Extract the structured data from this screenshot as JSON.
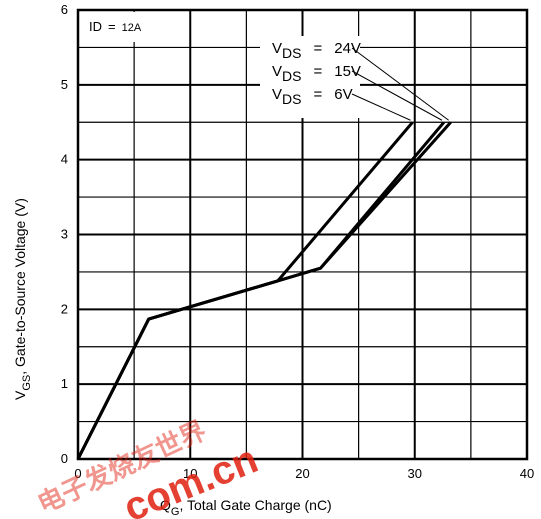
{
  "chart_data": {
    "type": "line",
    "xlabel": {
      "main": "Q",
      "sub": "G",
      "rest": ", Total Gate Charge (nC)"
    },
    "ylabel": {
      "main": "V",
      "sub": "GS",
      "rest": ", Gate-to-Source Voltage (V)"
    },
    "xlim": [
      0,
      40
    ],
    "ylim": [
      0,
      6
    ],
    "x_ticks": [
      "0",
      "10",
      "20",
      "30",
      "40"
    ],
    "y_ticks": [
      "0",
      "1",
      "2",
      "3",
      "4",
      "5",
      "6"
    ],
    "grid": true,
    "condition": {
      "label": "ID",
      "eq": "=",
      "value": "12A"
    },
    "series": [
      {
        "name": "24V",
        "label_main": "V",
        "label_sub": "DS",
        "eq": "=",
        "points": [
          [
            0,
            0
          ],
          [
            6.3,
            1.87
          ],
          [
            21.6,
            2.55
          ],
          [
            33.2,
            4.5
          ]
        ]
      },
      {
        "name": "15V",
        "label_main": "V",
        "label_sub": "DS",
        "eq": "=",
        "points": [
          [
            0,
            0
          ],
          [
            6.3,
            1.87
          ],
          [
            21.6,
            2.55
          ],
          [
            32.6,
            4.5
          ]
        ]
      },
      {
        "name": "6V",
        "label_main": "V",
        "label_sub": "DS",
        "eq": "=",
        "points": [
          [
            0,
            0
          ],
          [
            6.3,
            1.87
          ],
          [
            17.8,
            2.38
          ],
          [
            29.8,
            4.5
          ]
        ]
      }
    ],
    "line_color": "#000000"
  },
  "watermark": {
    "text_en": "com.cn",
    "text_cn": "电子发烧友世界",
    "color": "#e02010"
  }
}
